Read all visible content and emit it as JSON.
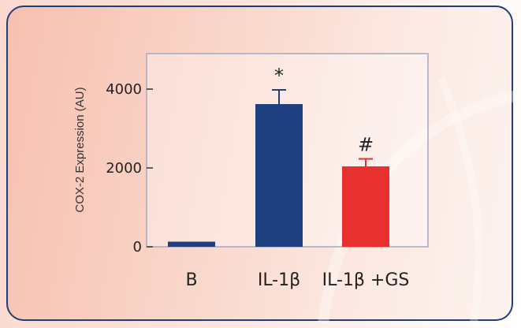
{
  "chart_data": {
    "type": "bar",
    "title": "",
    "xlabel": "",
    "ylabel": "COX-2 Expression (AU)",
    "ylim": [
      0,
      4500
    ],
    "yticks": [
      0,
      2000,
      4000
    ],
    "ytick_labels": [
      "0",
      "2000",
      "4000"
    ],
    "categories": [
      "B",
      "IL-1β",
      "IL-1β +GS"
    ],
    "values": [
      130,
      3620,
      2040
    ],
    "errors": [
      0,
      360,
      190
    ],
    "annotations": [
      "",
      "*",
      "#"
    ],
    "colors": [
      "#1f3f7f",
      "#1f3f7f",
      "#e8302e"
    ],
    "grid": false,
    "legend": "none"
  }
}
